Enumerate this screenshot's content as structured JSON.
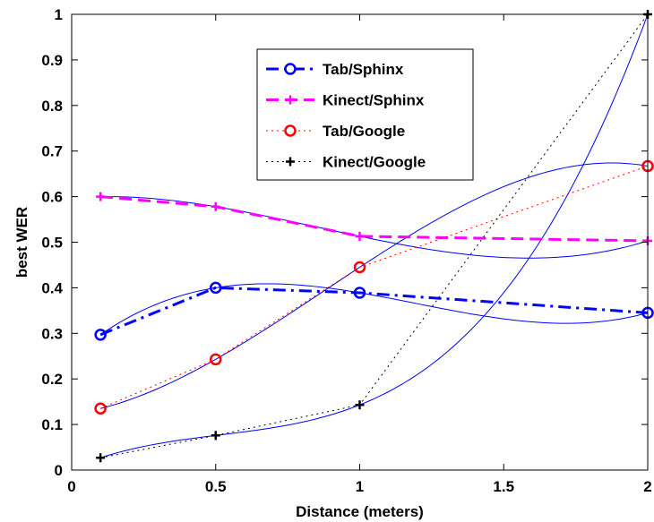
{
  "chart_data": {
    "type": "line",
    "title": "",
    "xlabel": "Distance (meters)",
    "ylabel": "best WER",
    "xlim": [
      0,
      2
    ],
    "ylim": [
      0,
      1
    ],
    "xticks": [
      0,
      0.5,
      1,
      1.5,
      2
    ],
    "xtick_labels": [
      "0",
      "0.5",
      "1",
      "1.5",
      "2"
    ],
    "yticks": [
      0,
      0.1,
      0.2,
      0.3,
      0.4,
      0.5,
      0.6,
      0.7,
      0.8,
      0.9,
      1
    ],
    "ytick_labels": [
      "0",
      "0.1",
      "0.2",
      "0.3",
      "0.4",
      "0.5",
      "0.6",
      "0.7",
      "0.8",
      "0.9",
      "1"
    ],
    "grid": false,
    "legend_position": "top-center",
    "x": [
      0.1,
      0.5,
      1,
      2
    ],
    "series": [
      {
        "name": "Tab/Sphinx",
        "values": [
          0.297,
          0.4,
          0.389,
          0.345
        ],
        "color": "#0000ff",
        "dash": "dash-dot",
        "marker": "circle",
        "line_width": 3
      },
      {
        "name": "Kinect/Sphinx",
        "values": [
          0.6,
          0.578,
          0.513,
          0.503
        ],
        "color": "#ff00ff",
        "dash": "dashed",
        "marker": "plus",
        "line_width": 3
      },
      {
        "name": "Tab/Google",
        "values": [
          0.135,
          0.243,
          0.445,
          0.667
        ],
        "color": "#ff0000",
        "dash": "dotted",
        "marker": "circle",
        "line_width": 1
      },
      {
        "name": "Kinect/Google",
        "values": [
          0.027,
          0.076,
          0.143,
          1.0
        ],
        "color": "#000000",
        "dash": "dotted",
        "marker": "plus",
        "line_width": 1
      }
    ],
    "fit_curves_color": "#0000ff"
  }
}
